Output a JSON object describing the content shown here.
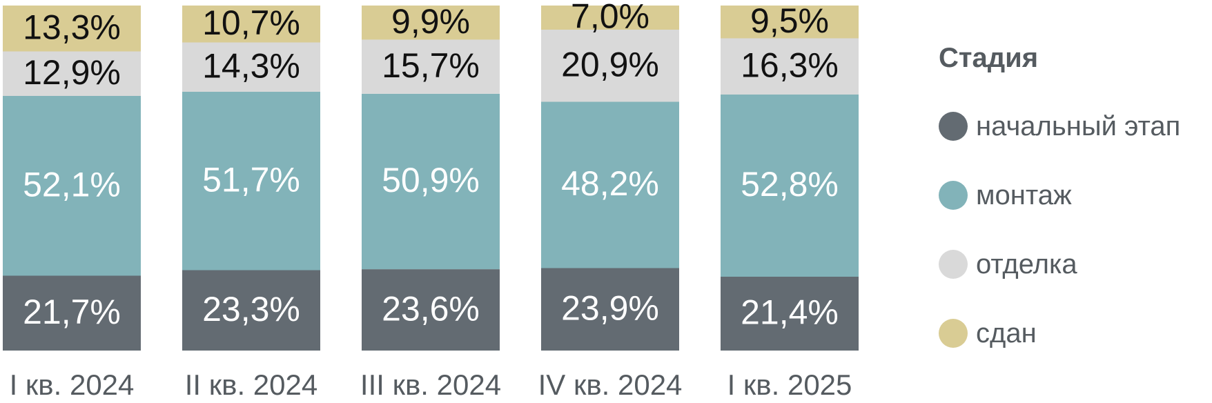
{
  "chart_data": {
    "type": "bar",
    "stacked": true,
    "orientation": "vertical",
    "categories": [
      "I кв. 2024",
      "II кв. 2024",
      "III кв. 2024",
      "IV кв. 2024",
      "I кв. 2025"
    ],
    "series": [
      {
        "name": "начальный этап",
        "color": "#636b72",
        "label_color": "#ffffff",
        "values": [
          21.7,
          23.3,
          23.6,
          23.9,
          21.4
        ],
        "labels": [
          "21,7%",
          "23,3%",
          "23,6%",
          "23,9%",
          "21,4%"
        ]
      },
      {
        "name": "монтаж",
        "color": "#82b3b9",
        "label_color": "#ffffff",
        "values": [
          52.1,
          51.7,
          50.9,
          48.2,
          52.8
        ],
        "labels": [
          "52,1%",
          "51,7%",
          "50,9%",
          "48,2%",
          "52,8%"
        ]
      },
      {
        "name": "отделка",
        "color": "#d9d9d9",
        "label_color": "#111111",
        "values": [
          12.9,
          14.3,
          15.7,
          20.9,
          16.3
        ],
        "labels": [
          "12,9%",
          "14,3%",
          "15,7%",
          "20,9%",
          "16,3%"
        ]
      },
      {
        "name": "сдан",
        "color": "#d9cc94",
        "label_color": "#111111",
        "values": [
          13.3,
          10.7,
          9.9,
          7.0,
          9.5
        ],
        "labels": [
          "13,3%",
          "10,7%",
          "9,9%",
          "7,0%",
          "9,5%"
        ]
      }
    ],
    "ylim": [
      0,
      100
    ],
    "grid": false,
    "legend": {
      "title": "Стадия",
      "position": "right"
    }
  }
}
